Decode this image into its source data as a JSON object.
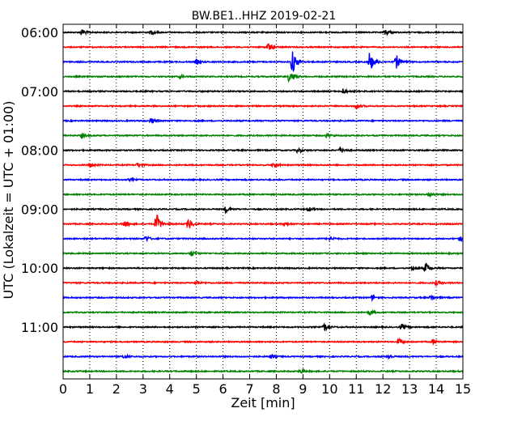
{
  "chart_data": {
    "type": "line",
    "title": "BW.BE1..HHZ 2019-02-21",
    "xlabel": "Zeit  [min]",
    "ylabel": "UTC (Lokalzeit = UTC + 01:00)",
    "xlim": [
      0,
      15
    ],
    "x_ticks": [
      0,
      1,
      2,
      3,
      4,
      5,
      6,
      7,
      8,
      9,
      10,
      11,
      12,
      13,
      14,
      15
    ],
    "y_tick_labels": [
      "06:00",
      "07:00",
      "08:00",
      "09:00",
      "10:00",
      "11:00"
    ],
    "grid": {
      "vertical_dotted": true
    },
    "line_colors": [
      "#000000",
      "#ff0000",
      "#0000ff",
      "#008000"
    ],
    "traces": [
      {
        "start": "06:00",
        "color": "#000000",
        "events": [
          {
            "t": 0.7,
            "amp": 4
          },
          {
            "t": 3.3,
            "amp": 3
          },
          {
            "t": 12.1,
            "amp": 4
          }
        ]
      },
      {
        "start": "06:15",
        "color": "#ff0000",
        "events": [
          {
            "t": 7.7,
            "amp": 5
          }
        ]
      },
      {
        "start": "06:30",
        "color": "#0000ff",
        "events": [
          {
            "t": 5.0,
            "amp": 3
          },
          {
            "t": 8.6,
            "amp": 16
          },
          {
            "t": 11.5,
            "amp": 14
          },
          {
            "t": 12.5,
            "amp": 9
          }
        ]
      },
      {
        "start": "06:45",
        "color": "#008000",
        "events": [
          {
            "t": 8.5,
            "amp": 10
          },
          {
            "t": 4.4,
            "amp": 2
          }
        ]
      },
      {
        "start": "07:00",
        "color": "#000000",
        "events": [
          {
            "t": 10.5,
            "amp": 3
          }
        ]
      },
      {
        "start": "07:15",
        "color": "#ff0000",
        "events": [
          {
            "t": 11.0,
            "amp": 3
          }
        ]
      },
      {
        "start": "07:30",
        "color": "#0000ff",
        "events": [
          {
            "t": 3.3,
            "amp": 4
          }
        ]
      },
      {
        "start": "07:45",
        "color": "#008000",
        "events": [
          {
            "t": 0.7,
            "amp": 3
          },
          {
            "t": 9.9,
            "amp": 3
          }
        ]
      },
      {
        "start": "08:00",
        "color": "#000000",
        "events": [
          {
            "t": 8.8,
            "amp": 3
          },
          {
            "t": 10.4,
            "amp": 4
          }
        ]
      },
      {
        "start": "08:15",
        "color": "#ff0000",
        "events": [
          {
            "t": 1.0,
            "amp": 3
          },
          {
            "t": 2.8,
            "amp": 3
          },
          {
            "t": 7.9,
            "amp": 3
          }
        ]
      },
      {
        "start": "08:30",
        "color": "#0000ff",
        "events": [
          {
            "t": 2.5,
            "amp": 2
          }
        ]
      },
      {
        "start": "08:45",
        "color": "#008000",
        "events": [
          {
            "t": 13.7,
            "amp": 3
          }
        ]
      },
      {
        "start": "09:00",
        "color": "#000000",
        "events": [
          {
            "t": 6.1,
            "amp": 4
          },
          {
            "t": 9.2,
            "amp": 3
          }
        ]
      },
      {
        "start": "09:15",
        "color": "#ff0000",
        "events": [
          {
            "t": 2.3,
            "amp": 5
          },
          {
            "t": 3.5,
            "amp": 14
          },
          {
            "t": 4.7,
            "amp": 7
          },
          {
            "t": 8.3,
            "amp": 3
          }
        ]
      },
      {
        "start": "09:30",
        "color": "#0000ff",
        "events": [
          {
            "t": 3.1,
            "amp": 4
          },
          {
            "t": 10.0,
            "amp": 3
          },
          {
            "t": 14.9,
            "amp": 4
          }
        ]
      },
      {
        "start": "09:45",
        "color": "#008000",
        "events": [
          {
            "t": 4.8,
            "amp": 4
          }
        ]
      },
      {
        "start": "10:00",
        "color": "#000000",
        "events": [
          {
            "t": 13.1,
            "amp": 3
          },
          {
            "t": 13.6,
            "amp": 7
          }
        ]
      },
      {
        "start": "10:15",
        "color": "#ff0000",
        "events": [
          {
            "t": 5.0,
            "amp": 3
          },
          {
            "t": 14.0,
            "amp": 3
          }
        ]
      },
      {
        "start": "10:30",
        "color": "#0000ff",
        "events": [
          {
            "t": 11.6,
            "amp": 3
          },
          {
            "t": 13.8,
            "amp": 3
          }
        ]
      },
      {
        "start": "10:45",
        "color": "#008000",
        "events": [
          {
            "t": 11.5,
            "amp": 3
          }
        ]
      },
      {
        "start": "11:00",
        "color": "#000000",
        "events": [
          {
            "t": 9.8,
            "amp": 5
          },
          {
            "t": 12.7,
            "amp": 4
          }
        ]
      },
      {
        "start": "11:15",
        "color": "#ff0000",
        "events": [
          {
            "t": 12.6,
            "amp": 4
          },
          {
            "t": 13.9,
            "amp": 3
          }
        ]
      },
      {
        "start": "11:30",
        "color": "#0000ff",
        "events": [
          {
            "t": 2.3,
            "amp": 3
          },
          {
            "t": 7.8,
            "amp": 3
          },
          {
            "t": 12.2,
            "amp": 3
          }
        ]
      },
      {
        "start": "11:45",
        "color": "#008000",
        "events": [
          {
            "t": 8.9,
            "amp": 3
          }
        ]
      }
    ]
  }
}
